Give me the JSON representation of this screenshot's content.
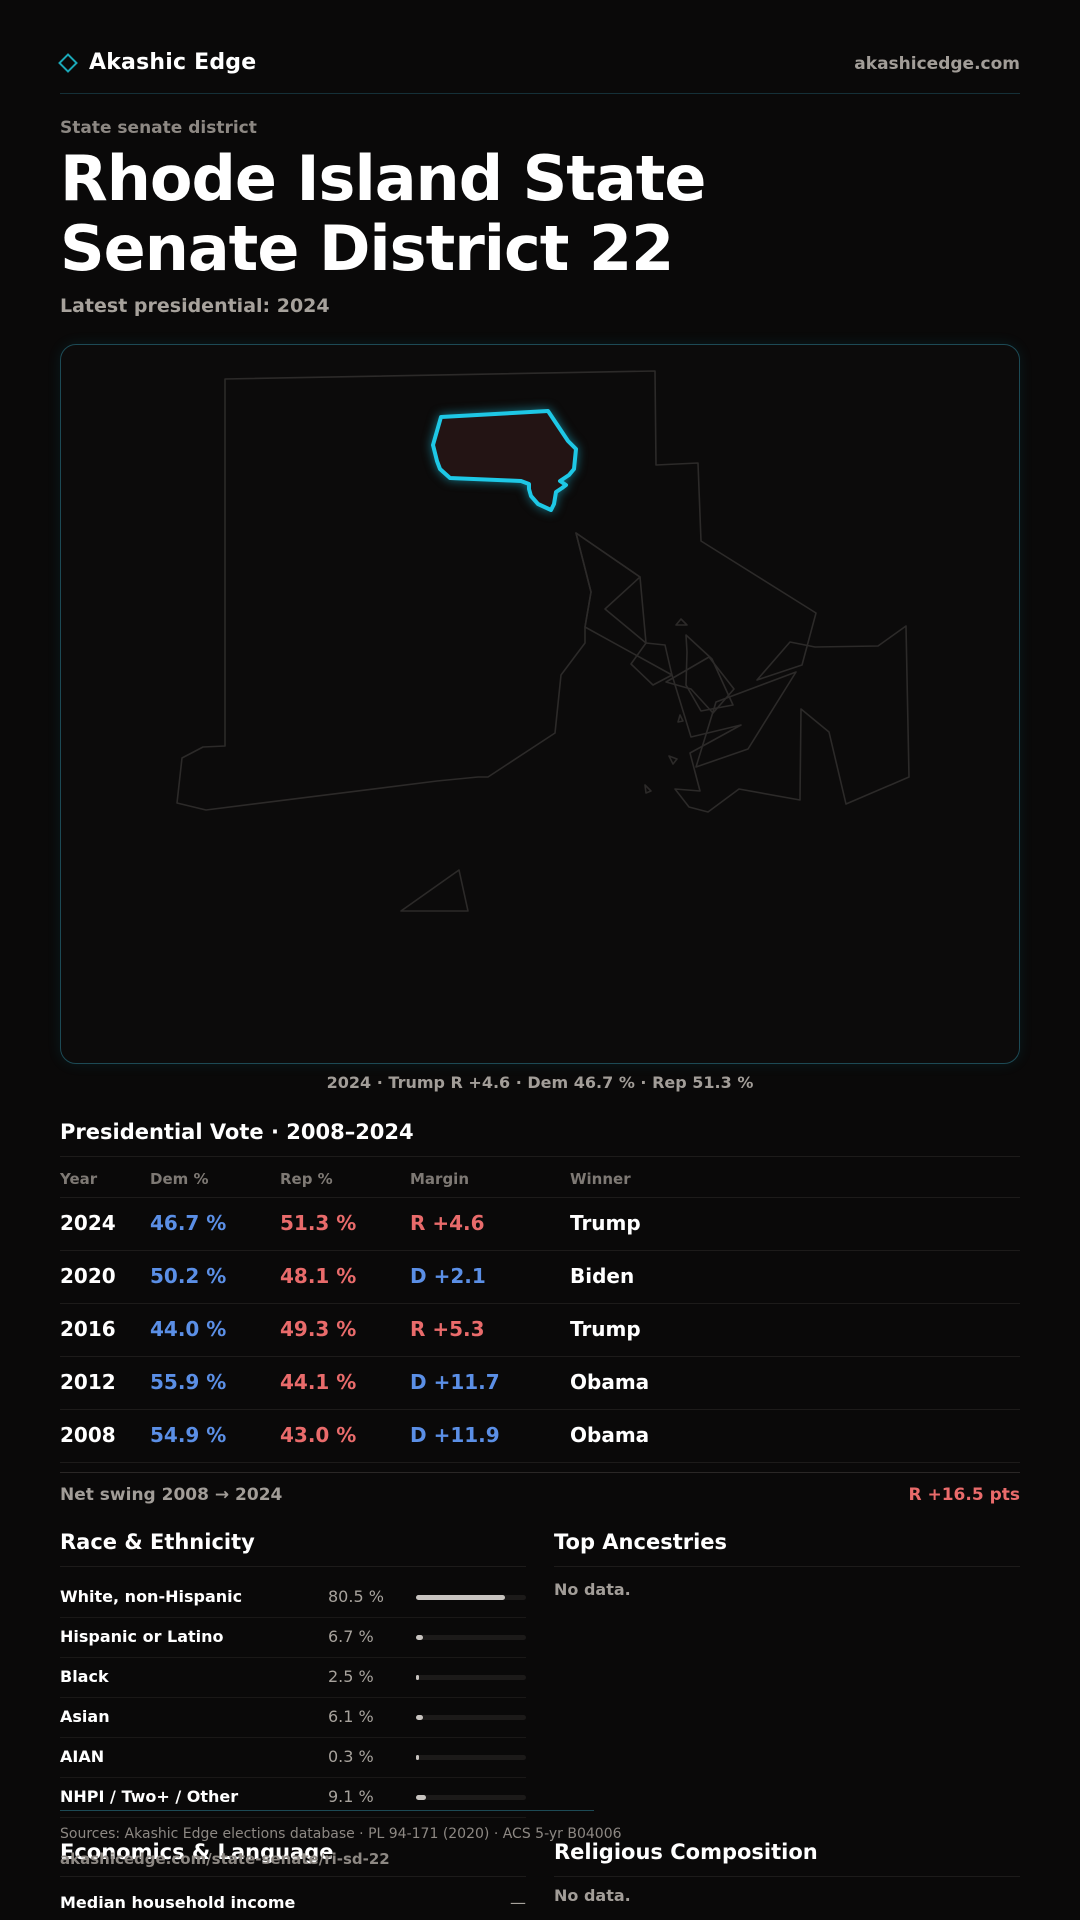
{
  "header": {
    "brand": "Akashic Edge",
    "brand_icon": "diamond-icon",
    "site_url": "akashicedge.com"
  },
  "page": {
    "kicker": "State senate district",
    "title": "Rhode Island State Senate District 22",
    "latest": "Latest presidential: 2024"
  },
  "map": {
    "caption": "2024 · Trump R +4.6 · Dem 46.7 % · Rep 51.3 %",
    "highlight_color": "#1ec8e6",
    "outline_color": "#2c2a29"
  },
  "presidential": {
    "title": "Presidential Vote · 2008–2024",
    "columns": [
      "Year",
      "Dem %",
      "Rep %",
      "Margin",
      "Winner"
    ],
    "rows": [
      {
        "year": "2024",
        "dem": "46.7 %",
        "rep": "51.3 %",
        "margin": "R +4.6",
        "margin_party": "R",
        "winner": "Trump"
      },
      {
        "year": "2020",
        "dem": "50.2 %",
        "rep": "48.1 %",
        "margin": "D +2.1",
        "margin_party": "D",
        "winner": "Biden"
      },
      {
        "year": "2016",
        "dem": "44.0 %",
        "rep": "49.3 %",
        "margin": "R +5.3",
        "margin_party": "R",
        "winner": "Trump"
      },
      {
        "year": "2012",
        "dem": "55.9 %",
        "rep": "44.1 %",
        "margin": "D +11.7",
        "margin_party": "D",
        "winner": "Obama"
      },
      {
        "year": "2008",
        "dem": "54.9 %",
        "rep": "43.0 %",
        "margin": "D +11.9",
        "margin_party": "D",
        "winner": "Obama"
      }
    ],
    "swing_label": "Net swing 2008 → 2024",
    "swing_value": "R +16.5 pts"
  },
  "colors": {
    "dem": "#5b8fe6",
    "rep": "#e96b6b",
    "accent": "#1aa8b8"
  },
  "race": {
    "title": "Race & Ethnicity",
    "rows": [
      {
        "label": "White, non-Hispanic",
        "value": "80.5 %",
        "share": 0.805
      },
      {
        "label": "Hispanic or Latino",
        "value": "6.7 %",
        "share": 0.067
      },
      {
        "label": "Black",
        "value": "2.5 %",
        "share": 0.025
      },
      {
        "label": "Asian",
        "value": "6.1 %",
        "share": 0.061
      },
      {
        "label": "AIAN",
        "value": "0.3 %",
        "share": 0.003
      },
      {
        "label": "NHPI / Two+ / Other",
        "value": "9.1 %",
        "share": 0.091
      }
    ]
  },
  "ancestries": {
    "title": "Top Ancestries",
    "no_data": "No data."
  },
  "economics": {
    "title": "Economics & Language",
    "rows": [
      {
        "label": "Median household income",
        "value": "—"
      }
    ]
  },
  "religion": {
    "title": "Religious Composition",
    "no_data": "No data."
  },
  "footer": {
    "sources": "Sources: Akashic Edge elections database · PL 94-171 (2020) · ACS 5-yr B04006",
    "url": "akashicedge.com/state-senate/ri-sd-22"
  }
}
